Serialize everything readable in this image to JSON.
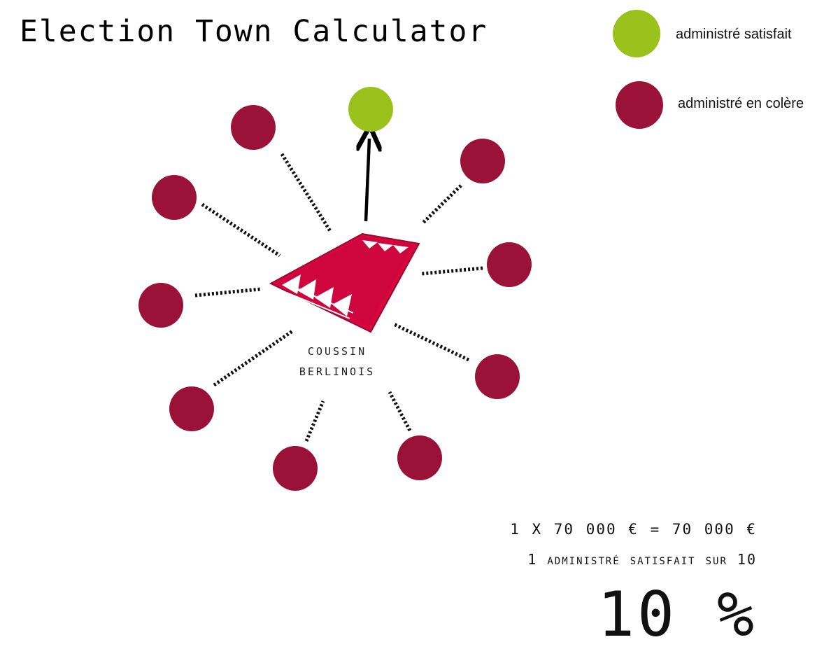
{
  "title": "Election Town Calculator",
  "legend": {
    "satisfied": {
      "label": "administré satisfait",
      "color": "#9bc21c"
    },
    "angry": {
      "label": "administré en colère",
      "color": "#9a1237"
    }
  },
  "cushion": {
    "line1": "COUSSIN",
    "line2": "BERLINOIS",
    "color": "#d6073f"
  },
  "residents": {
    "total": 10,
    "satisfied": 1
  },
  "calculation": {
    "cost_line": "1 X 70 000 €   =   70 000 €",
    "satisfied_line": "1 administré satisfait sur 10",
    "percent": "10 %"
  }
}
